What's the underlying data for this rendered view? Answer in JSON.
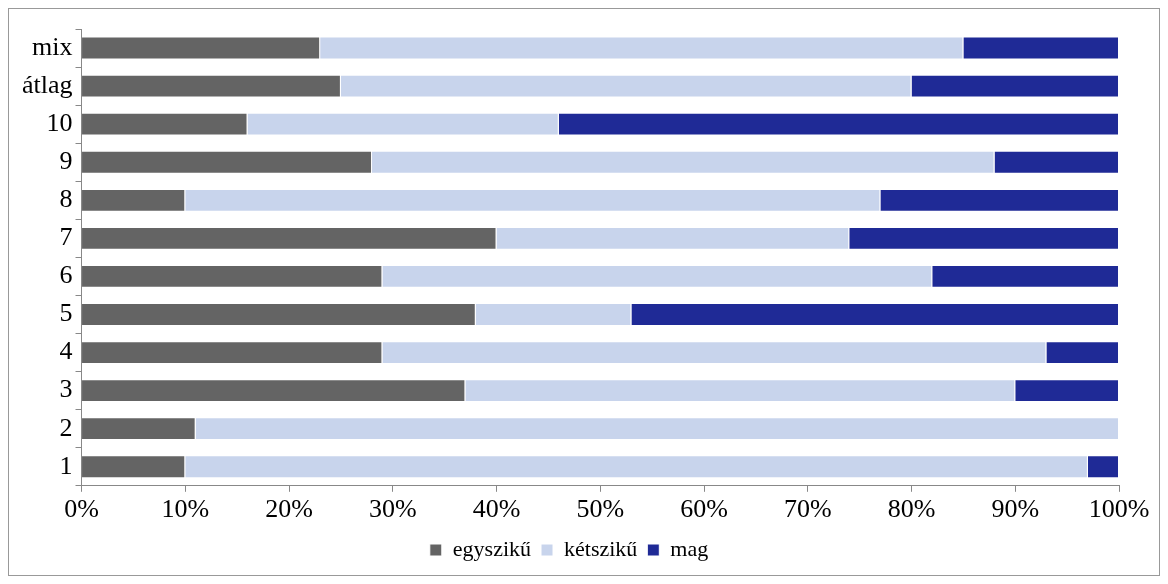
{
  "chart_data": {
    "type": "bar",
    "orientation": "horizontal",
    "stacked": true,
    "categories": [
      "mix",
      "átlag",
      "10",
      "9",
      "8",
      "7",
      "6",
      "5",
      "4",
      "3",
      "2",
      "1"
    ],
    "series": [
      {
        "name": "egyszikű",
        "color": "#646464",
        "values": [
          23,
          25,
          16,
          28,
          10,
          40,
          29,
          38,
          29,
          37,
          11,
          10
        ]
      },
      {
        "name": "kétszikű",
        "color": "#c8d4ec",
        "values": [
          62,
          55,
          30,
          60,
          67,
          34,
          53,
          15,
          64,
          53,
          89,
          87
        ]
      },
      {
        "name": "mag",
        "color": "#1f2a96",
        "values": [
          15,
          20,
          54,
          12,
          23,
          26,
          18,
          47,
          7,
          10,
          0,
          3
        ]
      }
    ],
    "xlim": [
      0,
      100
    ],
    "xticks": [
      {
        "value": 0,
        "label": "0%"
      },
      {
        "value": 10,
        "label": "10%"
      },
      {
        "value": 20,
        "label": "20%"
      },
      {
        "value": 30,
        "label": "30%"
      },
      {
        "value": 40,
        "label": "40%"
      },
      {
        "value": 50,
        "label": "50%"
      },
      {
        "value": 60,
        "label": "60%"
      },
      {
        "value": 70,
        "label": "70%"
      },
      {
        "value": 80,
        "label": "80%"
      },
      {
        "value": 90,
        "label": "90%"
      },
      {
        "value": 100,
        "label": "100%"
      }
    ],
    "grid": false,
    "legend": "bottom"
  }
}
